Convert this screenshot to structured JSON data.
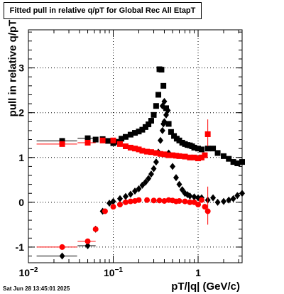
{
  "title": "Fitted pull in relative q/pT for Global Rec All EtapT",
  "timestamp": "Sat Jun 28 13:45:01 2025",
  "colors": {
    "black": "#000000",
    "red": "#ff0000",
    "grid": "#000000"
  },
  "chart_data": {
    "type": "scatter",
    "title": "Fitted pull in relative q/pT for Global Rec All EtapT",
    "xlabel": "pT/|q| (GeV/c)",
    "ylabel": "pull in relative q/pT",
    "xscale": "log",
    "xlim": [
      0.01,
      3.3
    ],
    "ylim": [
      -1.35,
      3.85
    ],
    "grid": true,
    "xticks": [
      {
        "value": 0.01,
        "base": "10",
        "exp": "−2"
      },
      {
        "value": 0.1,
        "base": "10",
        "exp": "−1"
      },
      {
        "value": 1,
        "base": "1",
        "exp": ""
      }
    ],
    "yticks": [
      -1,
      0,
      1,
      2,
      3
    ],
    "series": [
      {
        "color": "black",
        "marker": "square",
        "points": [
          [
            0.025,
            1.37
          ],
          [
            0.05,
            1.43
          ],
          [
            0.062,
            1.4
          ],
          [
            0.075,
            1.41
          ],
          [
            0.087,
            1.37
          ],
          [
            0.1,
            1.32
          ],
          [
            0.11,
            1.35
          ],
          [
            0.125,
            1.42
          ],
          [
            0.14,
            1.46
          ],
          [
            0.16,
            1.51
          ],
          [
            0.18,
            1.55
          ],
          [
            0.2,
            1.58
          ],
          [
            0.22,
            1.62
          ],
          [
            0.24,
            1.68
          ],
          [
            0.26,
            1.74
          ],
          [
            0.28,
            1.82
          ],
          [
            0.3,
            1.95
          ],
          [
            0.32,
            2.15
          ],
          [
            0.34,
            2.4
          ],
          [
            0.35,
            2.97
          ],
          [
            0.37,
            2.96
          ],
          [
            0.39,
            2.6
          ],
          [
            0.42,
            2.1
          ],
          [
            0.45,
            1.75
          ],
          [
            0.48,
            1.57
          ],
          [
            0.52,
            1.48
          ],
          [
            0.56,
            1.42
          ],
          [
            0.6,
            1.38
          ],
          [
            0.65,
            1.33
          ],
          [
            0.7,
            1.3
          ],
          [
            0.75,
            1.28
          ],
          [
            0.8,
            1.27
          ],
          [
            0.85,
            1.25
          ],
          [
            0.9,
            1.22
          ],
          [
            1.0,
            1.2
          ],
          [
            1.1,
            1.18
          ],
          [
            1.3,
            1.2
          ],
          [
            1.5,
            1.2
          ],
          [
            1.7,
            1.1
          ],
          [
            2.0,
            1.03
          ],
          [
            2.3,
            0.97
          ],
          [
            2.6,
            0.9
          ],
          [
            2.9,
            0.87
          ],
          [
            3.3,
            0.9
          ]
        ],
        "xerr": [
          [
            0.025,
            0.0125,
            0.0375
          ],
          [
            0.05,
            0.038,
            0.062
          ]
        ]
      },
      {
        "color": "black",
        "marker": "diamond",
        "points": [
          [
            0.025,
            -1.2
          ],
          [
            0.05,
            -0.97
          ],
          [
            0.062,
            -0.6
          ],
          [
            0.075,
            -0.2
          ],
          [
            0.09,
            -0.02
          ],
          [
            0.1,
            0.02
          ],
          [
            0.12,
            0.08
          ],
          [
            0.14,
            0.13
          ],
          [
            0.16,
            0.18
          ],
          [
            0.18,
            0.25
          ],
          [
            0.2,
            0.3
          ],
          [
            0.22,
            0.38
          ],
          [
            0.24,
            0.45
          ],
          [
            0.26,
            0.53
          ],
          [
            0.28,
            0.63
          ],
          [
            0.3,
            0.75
          ],
          [
            0.32,
            0.9
          ],
          [
            0.34,
            1.12
          ],
          [
            0.36,
            1.38
          ],
          [
            0.38,
            1.6
          ],
          [
            0.4,
            1.8
          ],
          [
            0.42,
            1.95
          ],
          [
            0.44,
            2.05
          ],
          [
            0.4,
            2.25
          ],
          [
            0.38,
            2.15
          ],
          [
            0.39,
            1.75
          ],
          [
            0.45,
            1.1
          ],
          [
            0.5,
            0.8
          ],
          [
            0.55,
            0.55
          ],
          [
            0.6,
            0.4
          ],
          [
            0.65,
            0.28
          ],
          [
            0.7,
            0.2
          ],
          [
            0.75,
            0.17
          ],
          [
            0.8,
            0.14
          ],
          [
            0.9,
            0.12
          ],
          [
            1.0,
            0.1
          ],
          [
            1.1,
            0.1
          ],
          [
            1.3,
            0.05
          ],
          [
            1.5,
            0.1
          ],
          [
            1.7,
            0.0
          ],
          [
            2.0,
            0.02
          ],
          [
            2.3,
            0.05
          ],
          [
            2.6,
            0.08
          ],
          [
            2.9,
            0.15
          ],
          [
            3.3,
            0.2
          ]
        ],
        "xerr": [
          [
            0.025,
            0.0125,
            0.0375
          ],
          [
            0.05,
            0.038,
            0.062
          ]
        ]
      },
      {
        "color": "red",
        "marker": "square",
        "points": [
          [
            0.025,
            1.3
          ],
          [
            0.05,
            1.33
          ],
          [
            0.075,
            1.38
          ],
          [
            0.1,
            1.38
          ],
          [
            0.12,
            1.3
          ],
          [
            0.14,
            1.25
          ],
          [
            0.16,
            1.22
          ],
          [
            0.18,
            1.2
          ],
          [
            0.2,
            1.18
          ],
          [
            0.22,
            1.15
          ],
          [
            0.25,
            1.13
          ],
          [
            0.28,
            1.12
          ],
          [
            0.32,
            1.1
          ],
          [
            0.36,
            1.08
          ],
          [
            0.4,
            1.07
          ],
          [
            0.45,
            1.05
          ],
          [
            0.5,
            1.05
          ],
          [
            0.55,
            1.04
          ],
          [
            0.6,
            1.03
          ],
          [
            0.7,
            1.02
          ],
          [
            0.8,
            1.0
          ],
          [
            0.9,
            1.0
          ],
          [
            1.0,
            0.98
          ],
          [
            1.1,
            1.0
          ],
          [
            1.2,
            1.05
          ],
          [
            1.3,
            1.52
          ]
        ],
        "xerr": [
          [
            0.025,
            0.0125,
            0.0375
          ],
          [
            0.05,
            0.038,
            0.062
          ]
        ],
        "yerr": [
          [
            1.3,
            1.25,
            1.85
          ]
        ]
      },
      {
        "color": "red",
        "marker": "circle",
        "points": [
          [
            0.025,
            -1.0
          ],
          [
            0.05,
            -0.87
          ],
          [
            0.062,
            -0.6
          ],
          [
            0.08,
            -0.2
          ],
          [
            0.1,
            -0.1
          ],
          [
            0.12,
            -0.05
          ],
          [
            0.14,
            0.0
          ],
          [
            0.16,
            0.02
          ],
          [
            0.18,
            0.03
          ],
          [
            0.2,
            0.05
          ],
          [
            0.25,
            0.05
          ],
          [
            0.3,
            0.04
          ],
          [
            0.35,
            0.04
          ],
          [
            0.4,
            0.03
          ],
          [
            0.45,
            0.05
          ],
          [
            0.5,
            0.04
          ],
          [
            0.55,
            0.02
          ],
          [
            0.6,
            0.03
          ],
          [
            0.7,
            0.02
          ],
          [
            0.8,
            0.0
          ],
          [
            0.9,
            0.0
          ],
          [
            1.0,
            -0.05
          ],
          [
            1.1,
            0.05
          ],
          [
            1.2,
            -0.1
          ],
          [
            1.3,
            -0.2
          ]
        ],
        "xerr": [
          [
            0.025,
            0.0125,
            0.0375
          ],
          [
            0.05,
            0.038,
            0.062
          ]
        ],
        "yerr": [
          [
            1.3,
            -0.5,
            0.35
          ]
        ]
      }
    ]
  }
}
